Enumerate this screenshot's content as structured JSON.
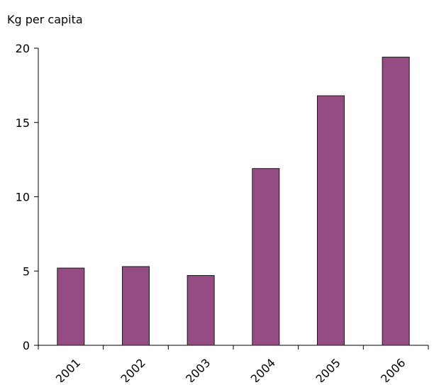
{
  "chart_data": {
    "type": "bar",
    "title": "",
    "xlabel": "",
    "ylabel": "Kg per capita",
    "categories": [
      "2001",
      "2002",
      "2003",
      "2004",
      "2005",
      "2006"
    ],
    "values": [
      5.2,
      5.3,
      4.7,
      11.9,
      16.8,
      19.4
    ],
    "ylim": [
      0,
      20
    ],
    "yticks": [
      "0",
      "5",
      "10",
      "15",
      "20"
    ],
    "grid": false,
    "legend": "none",
    "bar_color": "#944c82",
    "bar_edge_color": "#1a1a1a"
  }
}
